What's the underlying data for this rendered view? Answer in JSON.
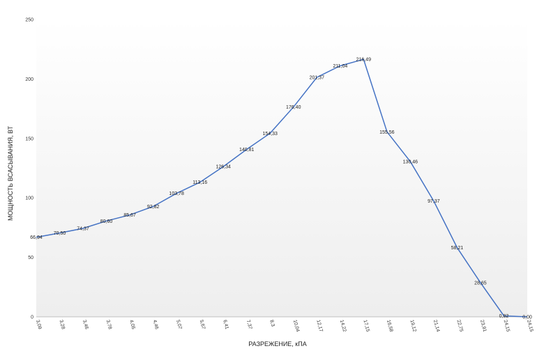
{
  "chart_data": {
    "type": "line",
    "title": "",
    "xlabel": "РАЗРЕЖЕНИЕ, кПА",
    "ylabel": "МОЩНОСТЬ ВСАСЫВАНИЯ, ВТ",
    "ylim": [
      0,
      250
    ],
    "yticks": [
      "0",
      "50",
      "100",
      "150",
      "200",
      "250"
    ],
    "grid": false,
    "legend": "none",
    "line_color": "#4472c4",
    "categories": [
      "3,09",
      "3,28",
      "3,46",
      "3,78",
      "4,05",
      "4,46",
      "5,07",
      "5,67",
      "6,41",
      "7,37",
      "8,3",
      "10,04",
      "12,17",
      "14,22",
      "17,15",
      "16,58",
      "19,12",
      "21,14",
      "22,75",
      "23,91",
      "24,15",
      "24,15"
    ],
    "series": [
      {
        "values": [
          66.94,
          70.5,
          74.37,
          80.6,
          85.67,
          92.82,
          103.78,
          113.16,
          126.34,
          140.81,
          154.33,
          176.4,
          201.37,
          211.04,
          216.49,
          155.56,
          130.46,
          97.37,
          58.21,
          28.65,
          0.82,
          0.0
        ],
        "labels": [
          "66,94",
          "70,50",
          "74,37",
          "80,60",
          "85,67",
          "92,82",
          "103,78",
          "113,16",
          "126,34",
          "140,81",
          "154,33",
          "176,40",
          "201,37",
          "211,04",
          "216,49",
          "155,56",
          "130,46",
          "97,37",
          "58,21",
          "28,65",
          "0,82",
          "0,00"
        ]
      }
    ]
  }
}
